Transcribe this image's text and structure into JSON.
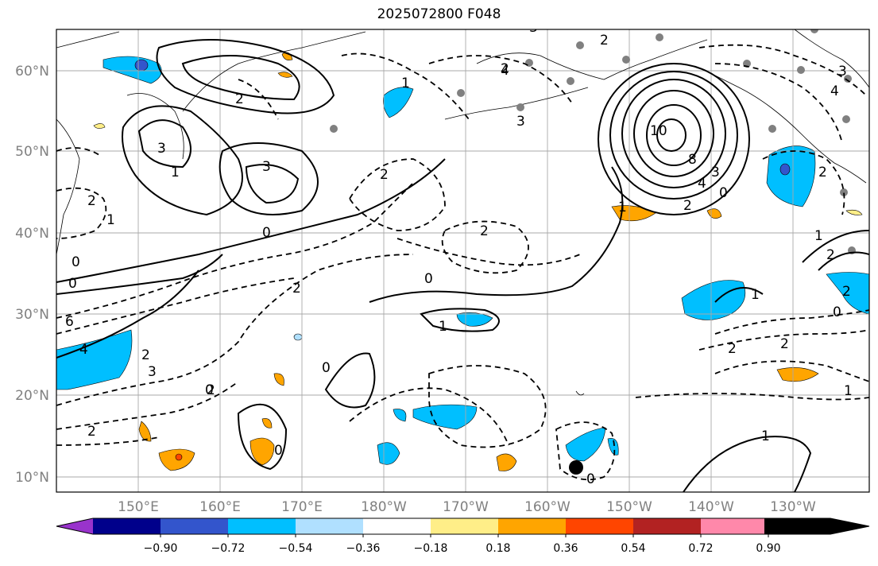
{
  "title": "2025072800 F048",
  "map": {
    "lat_labels": [
      "60°N",
      "50°N",
      "40°N",
      "30°N",
      "20°N",
      "10°N"
    ],
    "lon_labels": [
      "150°E",
      "160°E",
      "170°E",
      "180°W",
      "170°W",
      "160°W",
      "150°W",
      "140°W",
      "130°W"
    ],
    "grid": true,
    "contour_labels": [
      "1",
      "2",
      "2",
      "3",
      "3",
      "2",
      "1",
      "0",
      "0",
      "0",
      "3",
      "6",
      "4",
      "2",
      "2",
      "3",
      "2",
      "1",
      "2",
      "2",
      "0",
      "1",
      "2",
      "0",
      "2",
      "0",
      "4",
      "3",
      "0",
      "1",
      "10",
      "8",
      "4",
      "3",
      "2",
      "0",
      "1",
      "2",
      "2",
      "2",
      "1",
      "0",
      "2",
      "1",
      "2",
      "3",
      "4",
      "1",
      "0"
    ]
  },
  "colorbar": {
    "ticks": [
      "−0.90",
      "−0.72",
      "−0.54",
      "−0.36",
      "−0.18",
      "0.18",
      "0.36",
      "0.54",
      "0.72",
      "0.90"
    ],
    "colors": [
      "#9933cc",
      "#00008b",
      "#3355cc",
      "#00bfff",
      "#b0e0ff",
      "#ffffff",
      "#ffee88",
      "#ffa500",
      "#ff4500",
      "#b22222",
      "#ff88aa"
    ]
  }
}
